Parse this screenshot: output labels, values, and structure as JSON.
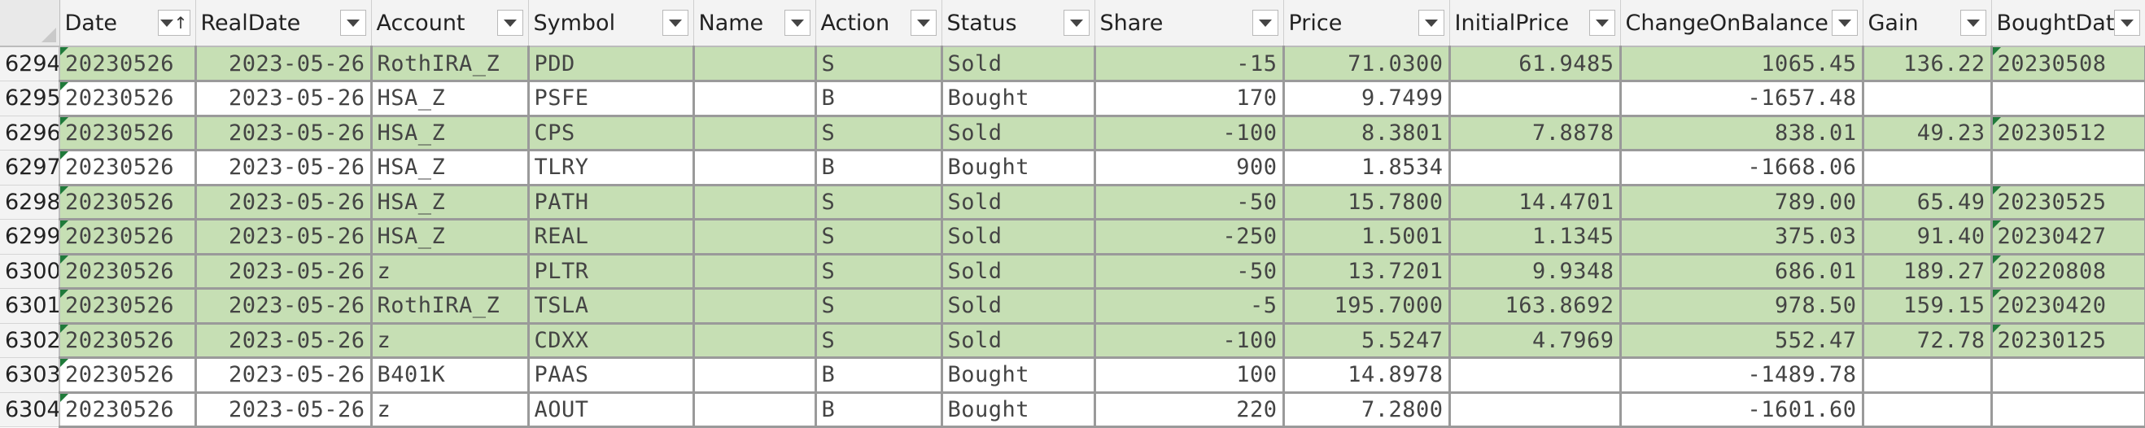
{
  "spreadsheet": {
    "columns": [
      {
        "key": "date",
        "label": "Date",
        "sorted": true
      },
      {
        "key": "realdate",
        "label": "RealDate"
      },
      {
        "key": "account",
        "label": "Account"
      },
      {
        "key": "symbol",
        "label": "Symbol"
      },
      {
        "key": "name",
        "label": "Name"
      },
      {
        "key": "action",
        "label": "Action"
      },
      {
        "key": "status",
        "label": "Status"
      },
      {
        "key": "share",
        "label": "Share"
      },
      {
        "key": "price",
        "label": "Price"
      },
      {
        "key": "initialprice",
        "label": "InitialPrice"
      },
      {
        "key": "changeonbalance",
        "label": "ChangeOnBalance"
      },
      {
        "key": "gain",
        "label": "Gain"
      },
      {
        "key": "boughtdate",
        "label": "BoughtDat"
      }
    ],
    "rows": [
      {
        "rownum": "6294",
        "date": "20230526",
        "realdate": "2023-05-26",
        "account": "RothIRA_Z",
        "symbol": "PDD",
        "name": "",
        "action": "S",
        "status": "Sold",
        "share": "-15",
        "price": "71.0300",
        "initialprice": "61.9485",
        "changeonbalance": "1065.45",
        "gain": "136.22",
        "boughtdate": "20230508"
      },
      {
        "rownum": "6295",
        "date": "20230526",
        "realdate": "2023-05-26",
        "account": "HSA_Z",
        "symbol": "PSFE",
        "name": "",
        "action": "B",
        "status": "Bought",
        "share": "170",
        "price": "9.7499",
        "initialprice": "",
        "changeonbalance": "-1657.48",
        "gain": "",
        "boughtdate": ""
      },
      {
        "rownum": "6296",
        "date": "20230526",
        "realdate": "2023-05-26",
        "account": "HSA_Z",
        "symbol": "CPS",
        "name": "",
        "action": "S",
        "status": "Sold",
        "share": "-100",
        "price": "8.3801",
        "initialprice": "7.8878",
        "changeonbalance": "838.01",
        "gain": "49.23",
        "boughtdate": "20230512"
      },
      {
        "rownum": "6297",
        "date": "20230526",
        "realdate": "2023-05-26",
        "account": "HSA_Z",
        "symbol": "TLRY",
        "name": "",
        "action": "B",
        "status": "Bought",
        "share": "900",
        "price": "1.8534",
        "initialprice": "",
        "changeonbalance": "-1668.06",
        "gain": "",
        "boughtdate": ""
      },
      {
        "rownum": "6298",
        "date": "20230526",
        "realdate": "2023-05-26",
        "account": "HSA_Z",
        "symbol": "PATH",
        "name": "",
        "action": "S",
        "status": "Sold",
        "share": "-50",
        "price": "15.7800",
        "initialprice": "14.4701",
        "changeonbalance": "789.00",
        "gain": "65.49",
        "boughtdate": "20230525"
      },
      {
        "rownum": "6299",
        "date": "20230526",
        "realdate": "2023-05-26",
        "account": "HSA_Z",
        "symbol": "REAL",
        "name": "",
        "action": "S",
        "status": "Sold",
        "share": "-250",
        "price": "1.5001",
        "initialprice": "1.1345",
        "changeonbalance": "375.03",
        "gain": "91.40",
        "boughtdate": "20230427"
      },
      {
        "rownum": "6300",
        "date": "20230526",
        "realdate": "2023-05-26",
        "account": "z",
        "symbol": "PLTR",
        "name": "",
        "action": "S",
        "status": "Sold",
        "share": "-50",
        "price": "13.7201",
        "initialprice": "9.9348",
        "changeonbalance": "686.01",
        "gain": "189.27",
        "boughtdate": "20220808"
      },
      {
        "rownum": "6301",
        "date": "20230526",
        "realdate": "2023-05-26",
        "account": "RothIRA_Z",
        "symbol": "TSLA",
        "name": "",
        "action": "S",
        "status": "Sold",
        "share": "-5",
        "price": "195.7000",
        "initialprice": "163.8692",
        "changeonbalance": "978.50",
        "gain": "159.15",
        "boughtdate": "20230420"
      },
      {
        "rownum": "6302",
        "date": "20230526",
        "realdate": "2023-05-26",
        "account": "z",
        "symbol": "CDXX",
        "name": "",
        "action": "S",
        "status": "Sold",
        "share": "-100",
        "price": "5.5247",
        "initialprice": "4.7969",
        "changeonbalance": "552.47",
        "gain": "72.78",
        "boughtdate": "20230125"
      },
      {
        "rownum": "6303",
        "date": "20230526",
        "realdate": "2023-05-26",
        "account": "B401K",
        "symbol": "PAAS",
        "name": "",
        "action": "B",
        "status": "Bought",
        "share": "100",
        "price": "14.8978",
        "initialprice": "",
        "changeonbalance": "-1489.78",
        "gain": "",
        "boughtdate": ""
      },
      {
        "rownum": "6304",
        "date": "20230526",
        "realdate": "2023-05-26",
        "account": "z",
        "symbol": "AOUT",
        "name": "",
        "action": "B",
        "status": "Bought",
        "share": "220",
        "price": "7.2800",
        "initialprice": "",
        "changeonbalance": "-1601.60",
        "gain": "",
        "boughtdate": ""
      }
    ],
    "colors": {
      "sold_fill": "#c6dfb4",
      "bought_fill": "#ffffff",
      "header_fill": "#f3f3f3",
      "grid_line": "#9a9a9a",
      "note_marker": "#1f7a3a"
    },
    "icons": {
      "filter": "chevron-down-icon",
      "sort": "sort-ascending-icon",
      "corner": "select-all-triangle-icon"
    }
  }
}
